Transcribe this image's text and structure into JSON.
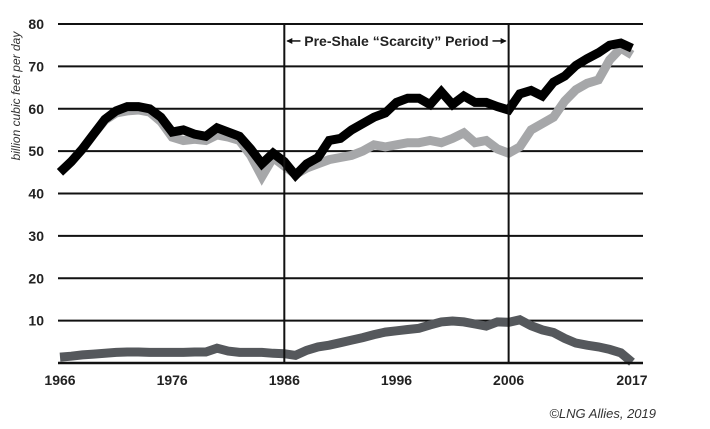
{
  "chart_data": {
    "type": "line",
    "title": "",
    "xlabel": "",
    "ylabel": "billion cubic feet per day",
    "xlim": [
      1966,
      2017
    ],
    "ylim": [
      0,
      80
    ],
    "grid": true,
    "legend": "none",
    "x_ticks": [
      "1966",
      "1976",
      "1986",
      "1996",
      "2006",
      "2017"
    ],
    "x_tick_values": [
      1966,
      1976,
      1986,
      1996,
      2006,
      2017
    ],
    "y_ticks": [
      "10",
      "20",
      "30",
      "40",
      "50",
      "60",
      "70",
      "80"
    ],
    "y_tick_values": [
      10,
      20,
      30,
      40,
      50,
      60,
      70,
      80
    ],
    "x": [
      1966,
      1967,
      1968,
      1969,
      1970,
      1971,
      1972,
      1973,
      1974,
      1975,
      1976,
      1977,
      1978,
      1979,
      1980,
      1981,
      1982,
      1983,
      1984,
      1985,
      1986,
      1987,
      1988,
      1989,
      1990,
      1991,
      1992,
      1993,
      1994,
      1995,
      1996,
      1997,
      1998,
      1999,
      2000,
      2001,
      2002,
      2003,
      2004,
      2005,
      2006,
      2007,
      2008,
      2009,
      2010,
      2011,
      2012,
      2013,
      2014,
      2015,
      2016,
      2017
    ],
    "series": [
      {
        "name": "series-light-gray",
        "color": "#a6a7a9",
        "values": [
          45,
          47.5,
          50.5,
          54,
          57.3,
          59,
          59.5,
          59.7,
          59.2,
          57,
          53.3,
          52.5,
          52.8,
          52.5,
          53.8,
          53.3,
          52.5,
          49,
          44,
          48.5,
          46.5,
          44.5,
          46,
          47,
          48,
          48.5,
          49,
          50,
          51.5,
          51,
          51.5,
          52,
          52,
          52.5,
          52,
          53,
          54.3,
          52,
          52.5,
          50.5,
          49.5,
          51,
          55,
          56.5,
          58,
          61.8,
          64.5,
          66,
          66.8,
          71.5,
          74.3,
          72.7
        ]
      },
      {
        "name": "series-black",
        "color": "#000000",
        "values": [
          45,
          47.5,
          50.5,
          54,
          57.5,
          59.5,
          60.5,
          60.5,
          60,
          58,
          54.5,
          55,
          54,
          53.5,
          55.5,
          54.5,
          53.5,
          50.5,
          47,
          49.5,
          47.5,
          44.3,
          47,
          48.5,
          52.5,
          53,
          55,
          56.5,
          58,
          59,
          61.5,
          62.5,
          62.5,
          61,
          64,
          61,
          63,
          61.5,
          61.5,
          60.5,
          59.7,
          63.5,
          64.3,
          63,
          66.3,
          67.7,
          70.2,
          71.8,
          73.2,
          75,
          75.5,
          74.3
        ]
      },
      {
        "name": "series-dark-gray",
        "color": "#55585c",
        "values": [
          1.4,
          1.6,
          1.9,
          2.1,
          2.3,
          2.5,
          2.6,
          2.6,
          2.5,
          2.5,
          2.5,
          2.5,
          2.6,
          2.6,
          3.5,
          2.8,
          2.5,
          2.5,
          2.5,
          2.3,
          2.2,
          1.8,
          3,
          3.8,
          4.2,
          4.8,
          5.4,
          6,
          6.7,
          7.3,
          7.6,
          7.9,
          8.2,
          9,
          9.7,
          9.9,
          9.7,
          9.2,
          8.7,
          9.7,
          9.6,
          10.2,
          8.8,
          7.8,
          7.2,
          5.8,
          4.7,
          4.2,
          3.8,
          3.2,
          2.4,
          0.2
        ]
      }
    ],
    "vertical_markers": [
      1986,
      2006
    ],
    "annotation": {
      "text": "Pre-Shale “Scarcity” Period",
      "x_start": 1986,
      "x_end": 2006,
      "y": 76
    },
    "credit": "©LNG Allies, 2019"
  }
}
